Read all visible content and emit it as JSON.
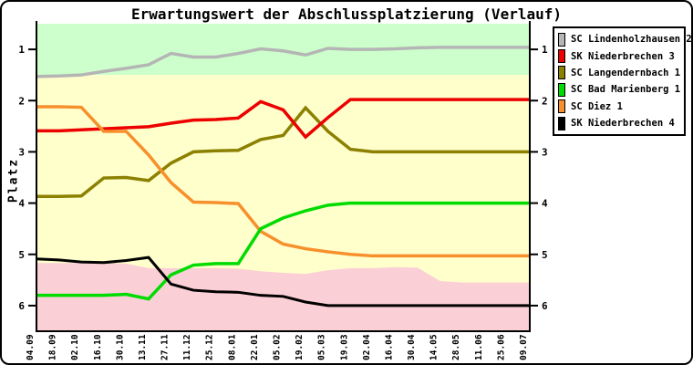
{
  "window": {
    "background": "#FFFFFF",
    "border_color": "#000000"
  },
  "chart_data": {
    "type": "line",
    "title": "Erwartungswert der Abschlussplatzierung (Verlauf)",
    "ylabel": "Platz",
    "y_axis_inverted": true,
    "ylim": [
      0.5,
      6.5
    ],
    "y_ticks": [
      "1",
      "2",
      "3",
      "4",
      "5",
      "6"
    ],
    "y_ticks_both_sides": true,
    "grid": false,
    "legend_position": "top-right",
    "x_tick_labels_rotated": true,
    "categories": [
      "04.09",
      "18.09",
      "02.10",
      "16.10",
      "30.10",
      "13.11",
      "27.11",
      "11.12",
      "25.12",
      "08.01",
      "22.01",
      "05.02",
      "19.02",
      "05.03",
      "19.03",
      "02.04",
      "16.04",
      "30.04",
      "14.05",
      "28.05",
      "11.06",
      "25.06",
      "09.07"
    ],
    "series": [
      {
        "name": "SC Lindenholzhausen 2",
        "color": "#B5B5B5",
        "values": [
          1.53,
          1.52,
          1.5,
          1.43,
          1.37,
          1.3,
          1.08,
          1.15,
          1.15,
          1.08,
          0.99,
          1.03,
          1.11,
          0.98,
          1.0,
          1.0,
          0.99,
          0.97,
          0.96,
          0.96,
          0.96,
          0.96,
          0.96
        ]
      },
      {
        "name": "SK Niederbrechen 3",
        "color": "#EC0000",
        "values": [
          2.59,
          2.59,
          2.57,
          2.55,
          2.53,
          2.51,
          2.44,
          2.38,
          2.37,
          2.34,
          2.02,
          2.18,
          2.71,
          2.33,
          1.98,
          1.98,
          1.98,
          1.98,
          1.98,
          1.98,
          1.98,
          1.98,
          1.98
        ]
      },
      {
        "name": "SC Langendernbach 1",
        "color": "#8B8000",
        "values": [
          3.87,
          3.87,
          3.86,
          3.51,
          3.5,
          3.56,
          3.22,
          3.0,
          2.98,
          2.97,
          2.76,
          2.68,
          2.14,
          2.6,
          2.95,
          3.0,
          3.0,
          3.0,
          3.0,
          3.0,
          3.0,
          3.0,
          3.0
        ]
      },
      {
        "name": "SC Bad Marienberg 1",
        "color": "#00DB00",
        "values": [
          5.8,
          5.8,
          5.8,
          5.8,
          5.78,
          5.87,
          5.4,
          5.21,
          5.18,
          5.18,
          4.5,
          4.29,
          4.15,
          4.04,
          4.0,
          4.0,
          4.0,
          4.0,
          4.0,
          4.0,
          4.0,
          4.0,
          4.0
        ]
      },
      {
        "name": "SC Diez 1",
        "color": "#F7902C",
        "values": [
          2.12,
          2.12,
          2.13,
          2.6,
          2.6,
          3.06,
          3.6,
          3.98,
          3.99,
          4.01,
          4.55,
          4.8,
          4.89,
          4.95,
          5.0,
          5.03,
          5.03,
          5.03,
          5.03,
          5.03,
          5.03,
          5.03,
          5.03
        ]
      },
      {
        "name": "SK Niederbrechen 4",
        "color": "#000000",
        "values": [
          5.09,
          5.11,
          5.15,
          5.16,
          5.12,
          5.06,
          5.58,
          5.7,
          5.73,
          5.74,
          5.8,
          5.82,
          5.93,
          6.0,
          6.0,
          6.0,
          6.0,
          6.0,
          6.0,
          6.0,
          6.0,
          6.0,
          6.0
        ]
      }
    ],
    "zones": {
      "promotion": {
        "color": "#CCFFCC",
        "from": 0.5,
        "to": 1.5
      },
      "midfield": {
        "color": "#FFFFCC",
        "from": 1.5,
        "to": 6.5
      },
      "relegation": {
        "color": "#FBCFD6",
        "to": 6.5,
        "boundary_values": [
          5.17,
          5.17,
          5.17,
          5.17,
          5.18,
          5.27,
          5.27,
          5.27,
          5.27,
          5.28,
          5.33,
          5.36,
          5.38,
          5.31,
          5.27,
          5.27,
          5.25,
          5.26,
          5.52,
          5.55,
          5.55,
          5.55,
          5.55
        ]
      }
    }
  }
}
